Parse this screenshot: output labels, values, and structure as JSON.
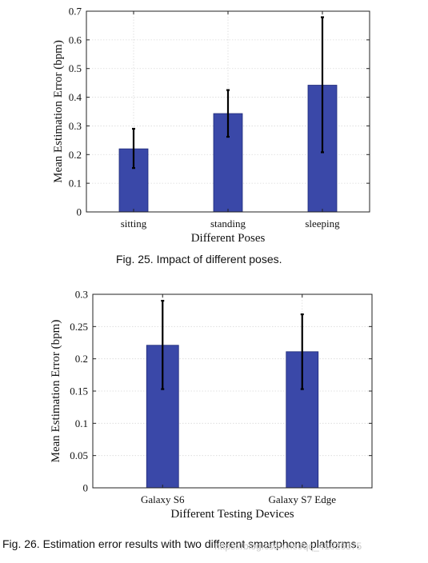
{
  "chart_data": [
    {
      "type": "bar",
      "categories": [
        "sitting",
        "standing",
        "sleeping"
      ],
      "values": [
        0.22,
        0.343,
        0.442
      ],
      "errors": [
        [
          0.153,
          0.29
        ],
        [
          0.262,
          0.425
        ],
        [
          0.208,
          0.679
        ]
      ],
      "xlabel": "Different Poses",
      "ylabel": "Mean Estimation Error (bpm)",
      "ylim": [
        0,
        0.7
      ],
      "yticks": [
        0,
        0.1,
        0.2,
        0.3,
        0.4,
        0.5,
        0.6,
        0.7
      ],
      "grid": true,
      "bar_color": "#3a48a8"
    },
    {
      "type": "bar",
      "categories": [
        "Galaxy S6",
        "Galaxy S7 Edge"
      ],
      "values": [
        0.221,
        0.211
      ],
      "errors": [
        [
          0.153,
          0.29
        ],
        [
          0.153,
          0.269
        ]
      ],
      "xlabel": "Different Testing Devices",
      "ylabel": "Mean Estimation Error (bpm)",
      "ylim": [
        0,
        0.3
      ],
      "yticks": [
        0,
        0.05,
        0.1,
        0.15,
        0.2,
        0.25,
        0.3
      ],
      "grid": true,
      "bar_color": "#3a48a8"
    }
  ],
  "captions": {
    "fig1": "Fig. 25.  Impact of different poses.",
    "fig2": "Fig. 26.  Estimation error results with two different smartphone platforms."
  },
  "watermark": "https://blog.csdn.net/qq_41826375"
}
